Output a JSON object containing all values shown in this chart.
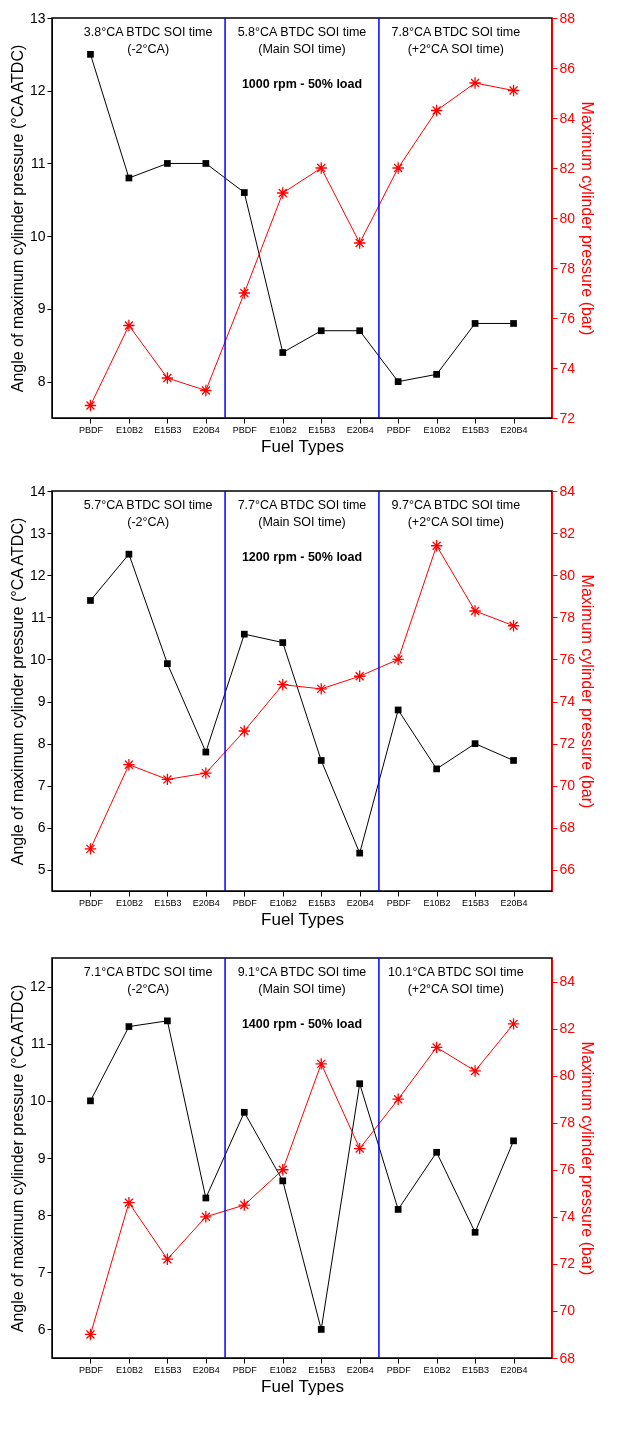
{
  "chart_data": [
    {
      "type": "line",
      "categories": [
        "PBDF",
        "E10B2",
        "E15B3",
        "E20B4",
        "PBDF",
        "E10B2",
        "E15B3",
        "E20B4",
        "PBDF",
        "E10B2",
        "E15B3",
        "E20B4"
      ],
      "xlabel": "Fuel Types",
      "ylabel": "Angle of maximum cylinder pressure (°CA ATDC)",
      "y2label": "Maximum cylinder pressure (bar)",
      "series": [
        {
          "color": "#000000",
          "marker": "square",
          "values": [
            12.5,
            10.8,
            11,
            11,
            10.6,
            8.4,
            8.7,
            8.7,
            8.0,
            8.1,
            8.8,
            8.8
          ]
        },
        {
          "color": "#ff0000",
          "marker": "cross",
          "axis": "y2",
          "values": [
            72.5,
            75.7,
            73.6,
            73.1,
            77,
            81,
            82,
            79,
            82,
            84.3,
            85.4,
            85.1
          ]
        }
      ],
      "ylim": [
        7.5,
        13
      ],
      "yticks": [
        8,
        9,
        10,
        11,
        12,
        13
      ],
      "y2lim": [
        72,
        88
      ],
      "y2ticks": [
        72,
        74,
        76,
        78,
        80,
        82,
        84,
        86,
        88
      ],
      "annotations": [
        "3.8°CA BTDC SOI time\n(-2°CA)",
        "5.8°CA BTDC SOI time\n(Main SOI time)",
        "7.8°CA BTDC SOI time\n(+2°CA SOI time)",
        "1000 rpm - 50% load"
      ],
      "grid": false,
      "line_style": "solid"
    },
    {
      "type": "line",
      "categories": [
        "PBDF",
        "E10B2",
        "E15B3",
        "E20B4",
        "PBDF",
        "E10B2",
        "E15B3",
        "E20B4",
        "PBDF",
        "E10B2",
        "E15B3",
        "E20B4"
      ],
      "xlabel": "Fuel Types",
      "ylabel": "Angle of maximum cylinder pressure (°CA ATDC)",
      "y2label": "Maximum cylinder pressure (bar)",
      "series": [
        {
          "color": "#000000",
          "marker": "square",
          "values": [
            11.4,
            12.5,
            9.9,
            7.8,
            10.6,
            10.4,
            7.6,
            5.4,
            8.8,
            7.4,
            8.0,
            7.6
          ]
        },
        {
          "color": "#ff0000",
          "marker": "cross",
          "axis": "y2",
          "values": [
            67,
            71,
            70.3,
            70.6,
            72.6,
            74.8,
            74.6,
            75.2,
            76,
            81.4,
            78.3,
            77.6
          ]
        }
      ],
      "ylim": [
        4.5,
        14
      ],
      "yticks": [
        5,
        6,
        7,
        8,
        9,
        10,
        11,
        12,
        13,
        14
      ],
      "y2lim": [
        65,
        84
      ],
      "y2ticks": [
        66,
        68,
        70,
        72,
        74,
        76,
        78,
        80,
        82,
        84
      ],
      "annotations": [
        "5.7°CA BTDC SOI time\n(-2°CA)",
        "7.7°CA BTDC SOI time\n(Main SOI time)",
        "9.7°CA BTDC SOI time\n(+2°CA SOI time)",
        "1200 rpm - 50% load"
      ],
      "grid": false,
      "line_style": "solid"
    },
    {
      "type": "line",
      "categories": [
        "PBDF",
        "E10B2",
        "E15B3",
        "E20B4",
        "PBDF",
        "E10B2",
        "E15B3",
        "E20B4",
        "PBDF",
        "E10B2",
        "E15B3",
        "E20B4"
      ],
      "xlabel": "Fuel Types",
      "ylabel": "Angle of maximum cylinder pressure (°CA ATDC)",
      "y2label": "Maximum cylinder pressure (bar)",
      "series": [
        {
          "color": "#000000",
          "marker": "square",
          "values": [
            10,
            11.3,
            11.4,
            8.3,
            9.8,
            8.6,
            6.0,
            10.3,
            8.1,
            9.1,
            7.7,
            9.3
          ]
        },
        {
          "color": "#ff0000",
          "marker": "cross",
          "axis": "y2",
          "values": [
            69,
            74.6,
            72.2,
            74,
            74.5,
            76,
            80.5,
            76.9,
            79,
            81.2,
            80.2,
            82.2
          ]
        }
      ],
      "ylim": [
        5.5,
        12.5
      ],
      "yticks": [
        6,
        7,
        8,
        9,
        10,
        11,
        12
      ],
      "y2lim": [
        68,
        85
      ],
      "y2ticks": [
        68,
        70,
        72,
        74,
        76,
        78,
        80,
        82,
        84
      ],
      "annotations": [
        "7.1°CA BTDC SOI time\n(-2°CA)",
        "9.1°CA BTDC SOI time\n(Main SOI time)",
        "10.1°CA BTDC SOI time\n(+2°CA SOI time)",
        "1400 rpm - 50% load"
      ],
      "grid": false,
      "line_style": "solid"
    }
  ]
}
